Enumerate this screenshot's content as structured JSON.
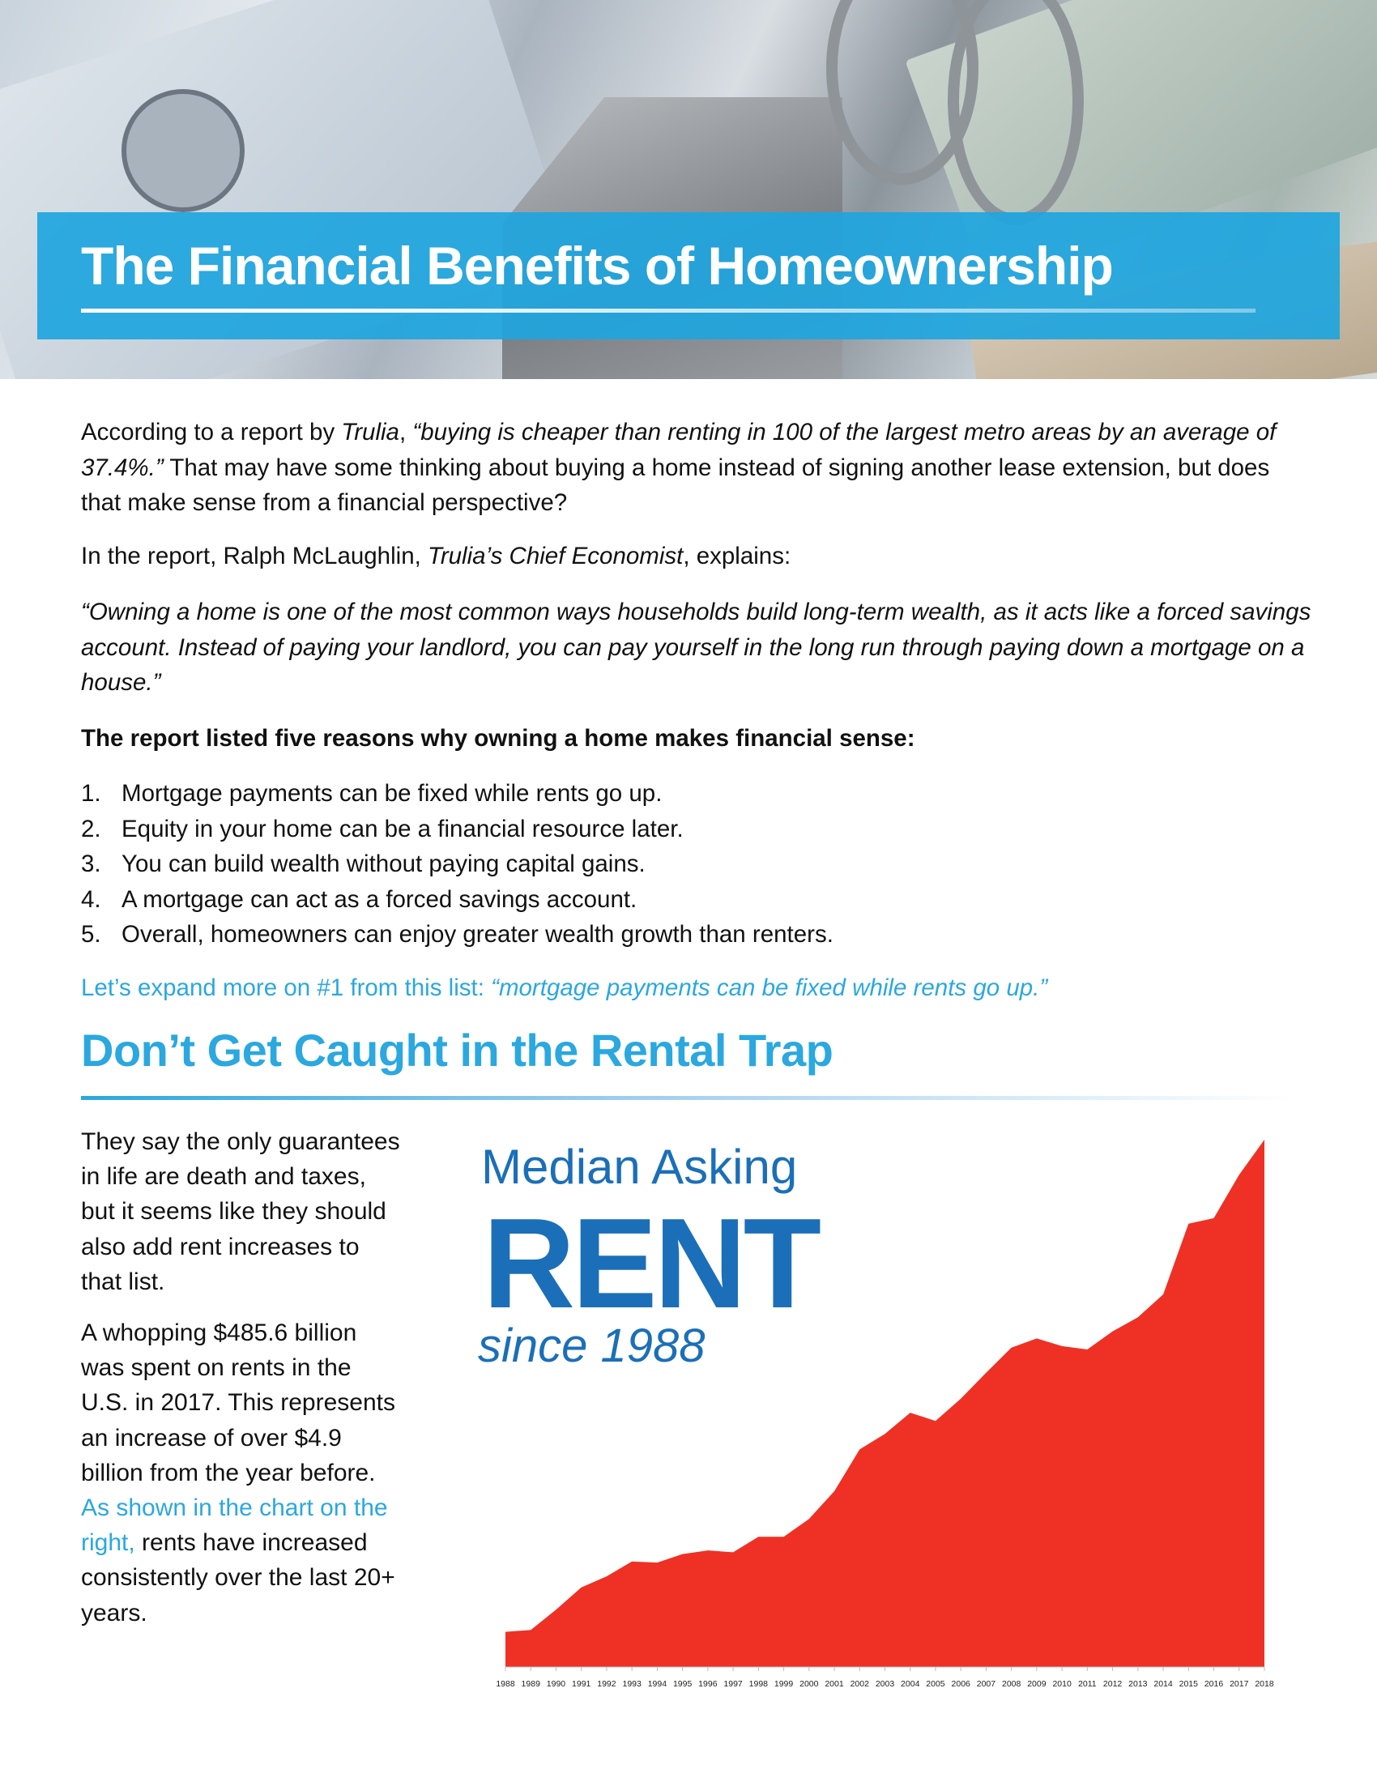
{
  "header": {
    "title": "The Financial Benefits of Homeownership"
  },
  "intro": {
    "p1_a": "According to a report by ",
    "p1_b": "Trulia",
    "p1_c": ", ",
    "p1_d": "“buying is cheaper than renting in 100 of the largest metro areas by an average of 37.4%.”",
    "p1_e": " That may have some thinking about buying a home instead of signing another lease extension, but does that make sense from a financial perspective?",
    "p2_a": "In the report, Ralph McLaughlin, ",
    "p2_b": "Trulia’s Chief Economist",
    "p2_c": ", explains:",
    "quote": "“Owning a home is one of the most common ways households build long-term wealth, as it acts like a forced savings account. Instead of paying your landlord, you can pay yourself in the long run through paying down a mortgage on a house.”",
    "list_heading": "The report listed five reasons why owning a home makes financial sense:",
    "reasons": [
      {
        "num": "1.",
        "text": "Mortgage payments can be fixed while rents go up."
      },
      {
        "num": "2.",
        "text": "Equity in your home can be a financial resource later."
      },
      {
        "num": "3.",
        "text": "You can build wealth without paying capital gains."
      },
      {
        "num": "4.",
        "text": "A mortgage can act as a forced savings account."
      },
      {
        "num": "5.",
        "text": "Overall, homeowners can enjoy greater wealth growth than renters."
      }
    ],
    "expand_a": "Let’s expand more on #1 from this list: ",
    "expand_b": "“mortgage payments can be fixed while rents go up.”"
  },
  "section": {
    "heading": "Don’t Get Caught in the Rental Trap",
    "p1": "They say the only guarantees in life are death and taxes, but it seems like they should also add rent increases to that list.",
    "p2_a": "A whopping $485.6 billion was spent on rents in the U.S. in 2017. This represents an increase of over $4.9 billion from the year before. ",
    "p2_b": "As shown in the chart on the right,",
    "p2_c": " rents have increased consistently over the last 20+ years."
  },
  "colors": {
    "accent_blue": "#2aa8df",
    "chart_title_blue": "#1b6fb8",
    "area_red": "#ee3124"
  },
  "chart_data": {
    "type": "area",
    "title_line1": "Median Asking",
    "title_line2": "RENT",
    "title_line3": "since 1988",
    "xlabel": "",
    "ylabel": "",
    "y_axis_shown": false,
    "grid": false,
    "categories": [
      "1988",
      "1989",
      "1990",
      "1991",
      "1992",
      "1993",
      "1994",
      "1995",
      "1996",
      "1997",
      "1998",
      "1999",
      "2000",
      "2001",
      "2002",
      "2003",
      "2004",
      "2005",
      "2006",
      "2007",
      "2008",
      "2009",
      "2010",
      "2011",
      "2012",
      "2013",
      "2014",
      "2015",
      "2016",
      "2017",
      "2018"
    ],
    "values": [
      95,
      100,
      155,
      215,
      245,
      285,
      282,
      305,
      315,
      310,
      352,
      352,
      400,
      475,
      588,
      630,
      687,
      665,
      725,
      795,
      863,
      888,
      867,
      858,
      907,
      945,
      1007,
      1198,
      1213,
      1330,
      1425
    ],
    "ylim": [
      0,
      1425
    ]
  }
}
